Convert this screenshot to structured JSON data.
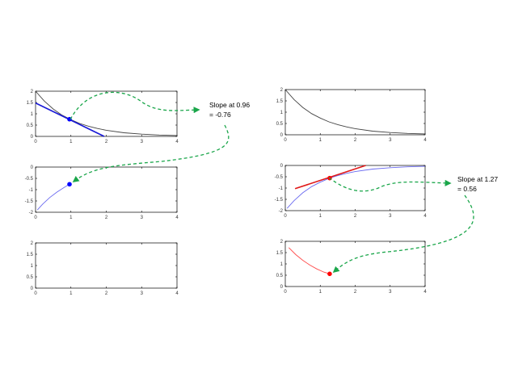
{
  "colors": {
    "curve_original": "#444444",
    "curve_derivative": "#6a6af0",
    "curve_second": "#ff4a4a",
    "tangent_left": "#1a1ad6",
    "point_left": "#0000ff",
    "tangent_right": "#e01818",
    "point_right": "#ff0000",
    "arrow": "#1aa64a"
  },
  "annotations": {
    "left": {
      "line1": "Slope at 0.96",
      "line2": "= -0.76"
    },
    "right": {
      "line1": "Slope at 1.27",
      "line2": "= 0.56"
    }
  },
  "chart_data": [
    {
      "id": "left-top",
      "type": "line",
      "xlim": [
        0,
        4
      ],
      "ylim": [
        0,
        2
      ],
      "xticks": [
        0,
        1,
        2,
        3,
        4
      ],
      "yticks": [
        0,
        0.5,
        1,
        1.5,
        2
      ],
      "series": [
        {
          "role": "curve",
          "color": "#444444",
          "x": [
            0,
            0.25,
            0.5,
            0.75,
            1,
            1.25,
            1.5,
            1.75,
            2,
            2.5,
            3,
            3.5,
            4
          ],
          "y": [
            2,
            1.56,
            1.21,
            0.94,
            0.74,
            0.57,
            0.45,
            0.35,
            0.27,
            0.16,
            0.1,
            0.06,
            0.04
          ]
        },
        {
          "role": "tangent",
          "color": "#1a1ad6",
          "x": [
            0,
            1.94
          ],
          "y": [
            1.48,
            0
          ]
        }
      ],
      "points": [
        {
          "x": 0.96,
          "y": 0.76,
          "color": "#0000ff"
        }
      ]
    },
    {
      "id": "left-middle",
      "type": "line",
      "xlim": [
        0,
        4
      ],
      "ylim": [
        -2,
        0
      ],
      "xticks": [
        0,
        1,
        2,
        3,
        4
      ],
      "yticks": [
        -2,
        -1.5,
        -1,
        -0.5,
        0
      ],
      "series": [
        {
          "role": "curve",
          "color": "#6a6af0",
          "x": [
            0.05,
            0.2,
            0.4,
            0.6,
            0.8,
            0.96
          ],
          "y": [
            -1.9,
            -1.64,
            -1.35,
            -1.11,
            -0.91,
            -0.76
          ]
        }
      ],
      "points": [
        {
          "x": 0.96,
          "y": -0.76,
          "color": "#0000ff"
        }
      ]
    },
    {
      "id": "left-bottom",
      "type": "line",
      "xlim": [
        0,
        4
      ],
      "ylim": [
        0,
        2
      ],
      "xticks": [
        0,
        1,
        2,
        3,
        4
      ],
      "yticks": [
        0,
        0.5,
        1,
        1.5,
        2
      ],
      "series": [],
      "points": []
    },
    {
      "id": "right-top",
      "type": "line",
      "xlim": [
        0,
        4
      ],
      "ylim": [
        0,
        2
      ],
      "xticks": [
        0,
        1,
        2,
        3,
        4
      ],
      "yticks": [
        0,
        0.5,
        1,
        1.5,
        2
      ],
      "series": [
        {
          "role": "curve",
          "color": "#444444",
          "x": [
            0,
            0.25,
            0.5,
            0.75,
            1,
            1.25,
            1.5,
            1.75,
            2,
            2.5,
            3,
            3.5,
            4
          ],
          "y": [
            2,
            1.56,
            1.21,
            0.94,
            0.74,
            0.57,
            0.45,
            0.35,
            0.27,
            0.16,
            0.1,
            0.06,
            0.04
          ]
        }
      ],
      "points": []
    },
    {
      "id": "right-middle",
      "type": "line",
      "xlim": [
        0,
        4
      ],
      "ylim": [
        -2,
        0
      ],
      "xticks": [
        0,
        1,
        2,
        3,
        4
      ],
      "yticks": [
        -2,
        -1.5,
        -1,
        -0.5,
        0
      ],
      "series": [
        {
          "role": "curve",
          "color": "#6a6af0",
          "x": [
            0.05,
            0.25,
            0.5,
            0.75,
            1,
            1.27,
            1.5,
            1.75,
            2,
            2.5,
            3,
            3.5,
            4
          ],
          "y": [
            -1.9,
            -1.56,
            -1.21,
            -0.94,
            -0.74,
            -0.56,
            -0.45,
            -0.35,
            -0.27,
            -0.16,
            -0.1,
            -0.06,
            -0.04
          ]
        },
        {
          "role": "tangent",
          "color": "#e01818",
          "x": [
            0.28,
            2.3
          ],
          "y": [
            -1.03,
            0
          ]
        }
      ],
      "points": [
        {
          "x": 1.27,
          "y": -0.56,
          "color": "#ff0000"
        }
      ]
    },
    {
      "id": "right-bottom",
      "type": "line",
      "xlim": [
        0,
        4
      ],
      "ylim": [
        0,
        2
      ],
      "xticks": [
        0,
        1,
        2,
        3,
        4
      ],
      "yticks": [
        0,
        0.5,
        1,
        1.5,
        2
      ],
      "series": [
        {
          "role": "curve",
          "color": "#ff4a4a",
          "x": [
            0.1,
            0.3,
            0.5,
            0.7,
            0.9,
            1.1,
            1.27
          ],
          "y": [
            1.72,
            1.41,
            1.16,
            0.95,
            0.78,
            0.64,
            0.56
          ]
        }
      ],
      "points": [
        {
          "x": 1.27,
          "y": 0.56,
          "color": "#ff0000"
        }
      ]
    }
  ]
}
